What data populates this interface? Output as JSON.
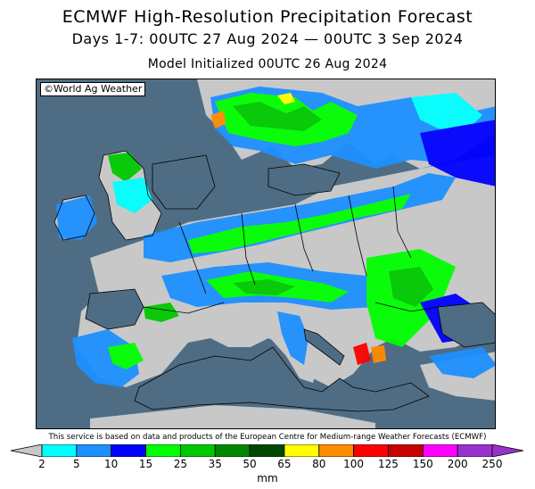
{
  "header": {
    "title": "ECMWF High-Resolution Precipitation Forecast",
    "subtitle": "Days 1-7: 00UTC 27 Aug 2024 — 00UTC 3 Sep 2024",
    "init_line": "Model Initialized 00UTC 26 Aug 2024"
  },
  "map": {
    "copyright": "©World Ag Weather",
    "region": "Europe",
    "colors": {
      "ocean": "#4e6d84",
      "no_precip_land": "#c8c8c8"
    }
  },
  "footer": {
    "disclaimer": "This service is based on data and products of the European Centre for Medium-range Weather Forecasts (ECMWF)",
    "unit": "mm"
  },
  "legend": {
    "ticks": [
      "2",
      "5",
      "10",
      "15",
      "25",
      "35",
      "50",
      "65",
      "80",
      "100",
      "125",
      "150",
      "200",
      "250"
    ],
    "colors": [
      "#00ffff",
      "#1e90ff",
      "#0000ff",
      "#00ff00",
      "#00c800",
      "#008800",
      "#004800",
      "#ffff00",
      "#ff8c00",
      "#ff0000",
      "#c80000",
      "#ff00ff",
      "#9932cc"
    ],
    "below_min_color": "#c8c8c8"
  }
}
